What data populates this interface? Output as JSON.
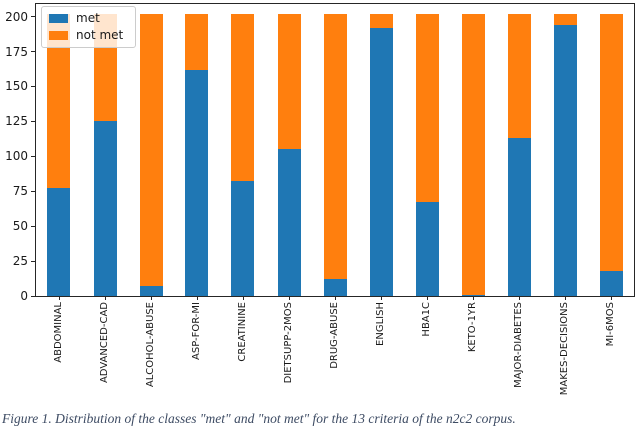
{
  "chart_data": {
    "type": "bar",
    "stacked": true,
    "title": "",
    "xlabel": "",
    "ylabel": "",
    "categories": [
      "ABDOMINAL",
      "ADVANCED-CAD",
      "ALCOHOL-ABUSE",
      "ASP-FOR-MI",
      "CREATININE",
      "DIETSUPP-2MOS",
      "DRUG-ABUSE",
      "ENGLISH",
      "HBA1C",
      "KETO-1YR",
      "MAJOR-DIABETES",
      "MAKES-DECISIONS",
      "MI-6MOS"
    ],
    "series": [
      {
        "name": "met",
        "color": "#1f77b4",
        "values": [
          77,
          125,
          7,
          162,
          82,
          105,
          12,
          192,
          67,
          1,
          113,
          194,
          18
        ]
      },
      {
        "name": "not met",
        "color": "#ff7f0e",
        "values": [
          125,
          77,
          195,
          40,
          120,
          97,
          190,
          10,
          135,
          201,
          89,
          8,
          184
        ]
      }
    ],
    "bar_total_per_category": 202,
    "yticks": [
      0,
      25,
      50,
      75,
      100,
      125,
      150,
      175,
      200
    ],
    "ylim": [
      0,
      209
    ],
    "grid": false,
    "legend_position": "upper left"
  },
  "caption": {
    "text": "Figure 1. Distribution of the classes \"met\" and \"not met\" for the 13 criteria of the n2c2 corpus."
  }
}
